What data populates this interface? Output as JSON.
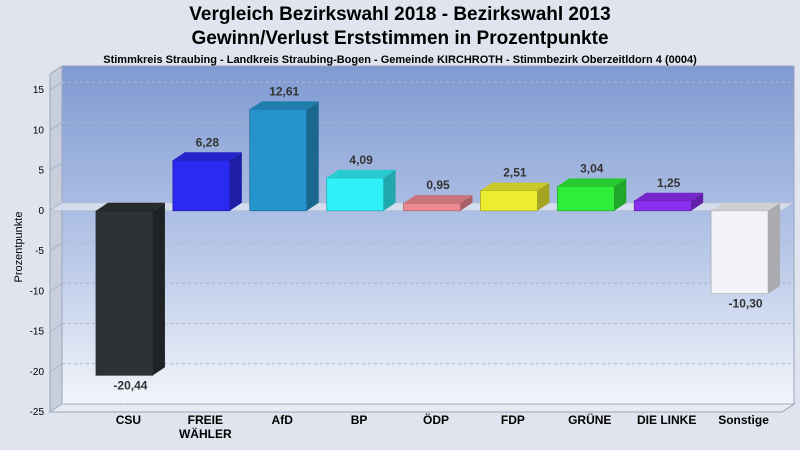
{
  "chart_data": {
    "type": "bar",
    "title": "Vergleich Bezirkswahl 2018 - Bezirkswahl 2013",
    "title2": "Gewinn/Verlust Erststimmen in Prozentpunkte",
    "subtitle": "Stimmkreis Straubing - Landkreis Straubing-Bogen - Gemeinde KIRCHROTH - Stimmbezirk Oberzeitldorn 4 (0004)",
    "ylabel": "Prozentpunkte",
    "xlabel": "",
    "ylim": [
      -25,
      17
    ],
    "yticks": [
      15,
      10,
      5,
      0,
      -5,
      -10,
      -15,
      -20,
      -25
    ],
    "grid": true,
    "categories": [
      {
        "lines": [
          "CSU"
        ]
      },
      {
        "lines": [
          "FREIE",
          "WÄHLER"
        ]
      },
      {
        "lines": [
          "AfD"
        ]
      },
      {
        "lines": [
          "BP"
        ]
      },
      {
        "lines": [
          "ÖDP"
        ]
      },
      {
        "lines": [
          "FDP"
        ]
      },
      {
        "lines": [
          "GRÜNE"
        ]
      },
      {
        "lines": [
          "DIE LINKE"
        ]
      },
      {
        "lines": [
          "Sonstige"
        ]
      }
    ],
    "values": [
      -20.44,
      6.28,
      12.61,
      4.09,
      0.95,
      2.51,
      3.04,
      1.25,
      -10.3
    ],
    "value_labels": [
      "-20,44",
      "6,28",
      "12,61",
      "4,09",
      "0,95",
      "2,51",
      "3,04",
      "1,25",
      "-10,30"
    ],
    "colors": [
      "#2e3236",
      "#2a2af0",
      "#2694cc",
      "#2ef0f6",
      "#ee8a92",
      "#ecec30",
      "#2eee3a",
      "#8a2ef0",
      "#f2f4f8"
    ]
  }
}
